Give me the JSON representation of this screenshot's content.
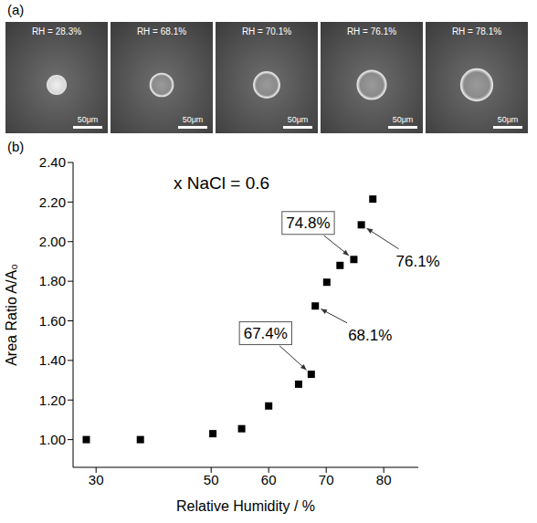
{
  "panel_a": {
    "label": "(a)",
    "images": [
      {
        "rh_label": "RH = 28.3%",
        "scale_label": "50μm"
      },
      {
        "rh_label": "RH = 68.1%",
        "scale_label": "50μm"
      },
      {
        "rh_label": "RH = 70.1%",
        "scale_label": "50μm"
      },
      {
        "rh_label": "RH = 76.1%",
        "scale_label": "50μm"
      },
      {
        "rh_label": "RH = 78.1%",
        "scale_label": "50μm"
      }
    ]
  },
  "chart_data": {
    "panel_label": "(b)",
    "type": "scatter",
    "title": "x NaCl = 0.6",
    "x_label": "Relative Humidity / %",
    "y_label": "Area Ratio A/A₀",
    "x": [
      28.3,
      37.7,
      50.3,
      55.3,
      60.0,
      65.2,
      67.4,
      68.1,
      70.1,
      72.4,
      74.8,
      76.1,
      78.1
    ],
    "values": [
      1.0,
      1.0,
      1.03,
      1.055,
      1.17,
      1.28,
      1.33,
      1.675,
      1.795,
      1.88,
      1.91,
      2.085,
      2.215
    ],
    "color": "#000000",
    "marker": "square",
    "xlim": [
      26,
      86
    ],
    "xticks": [
      30,
      50,
      60,
      70,
      80
    ],
    "ylim": [
      0.86,
      2.4
    ],
    "yticks": [
      {
        "value": 1.0,
        "label": "1.00"
      },
      {
        "value": 1.2,
        "label": "1.20"
      },
      {
        "value": 1.4,
        "label": "1.40"
      },
      {
        "value": 1.6,
        "label": "1.60"
      },
      {
        "value": 1.8,
        "label": "1.80"
      },
      {
        "value": 2.0,
        "label": "2.00"
      },
      {
        "value": 2.2,
        "label": "2.20"
      },
      {
        "value": 2.4,
        "label": "2.40"
      }
    ],
    "grid": false,
    "annotations": [
      {
        "text": "74.8%",
        "x": 74.8,
        "y": 1.91
      },
      {
        "text": "76.1%",
        "x": 76.1,
        "y": 2.085
      },
      {
        "text": "67.4%",
        "x": 67.4,
        "y": 1.33
      },
      {
        "text": "68.1%",
        "x": 68.1,
        "y": 1.675
      }
    ]
  }
}
